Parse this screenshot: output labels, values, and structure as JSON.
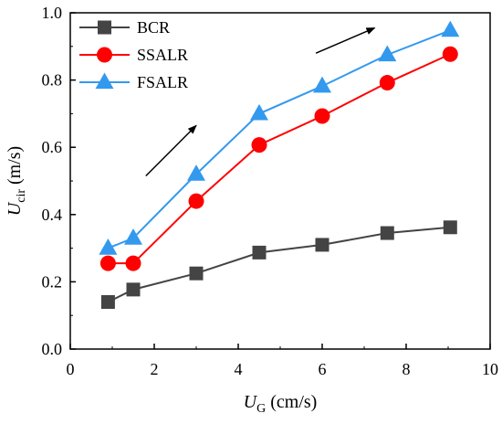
{
  "chart_data": {
    "type": "line",
    "xlabel": {
      "main": "U",
      "sub": "G",
      "unit": " (cm/s)"
    },
    "ylabel": {
      "main": "U",
      "sub": "cir",
      "unit": " (m/s)"
    },
    "xlim": [
      0,
      10
    ],
    "ylim": [
      0.0,
      1.0
    ],
    "xticks": [
      0,
      2,
      4,
      6,
      8,
      10
    ],
    "xtick_labels": [
      "0",
      "2",
      "4",
      "6",
      "8",
      "10"
    ],
    "yticks": [
      0.0,
      0.2,
      0.4,
      0.6,
      0.8,
      1.0
    ],
    "ytick_labels": [
      "0.0",
      "0.2",
      "0.4",
      "0.6",
      "0.8",
      "1.0"
    ],
    "grid": false,
    "legend_position": "top-left",
    "series": [
      {
        "name": "BCR",
        "marker": "square",
        "color": "#444444",
        "x": [
          0.9,
          1.5,
          3.0,
          4.5,
          6.0,
          7.55,
          9.05
        ],
        "values": [
          0.14,
          0.177,
          0.225,
          0.287,
          0.31,
          0.345,
          0.362
        ]
      },
      {
        "name": "SSALR",
        "marker": "circle",
        "color": "#ff0000",
        "x": [
          0.9,
          1.5,
          3.0,
          4.5,
          6.0,
          7.55,
          9.05
        ],
        "values": [
          0.255,
          0.255,
          0.44,
          0.607,
          0.693,
          0.792,
          0.877
        ]
      },
      {
        "name": "FSALR",
        "marker": "triangle",
        "color": "#3399ee",
        "x": [
          0.9,
          1.5,
          3.0,
          4.5,
          6.0,
          7.55,
          9.05
        ],
        "values": [
          0.3,
          0.33,
          0.52,
          0.7,
          0.782,
          0.875,
          0.948
        ]
      }
    ],
    "annotations": [
      {
        "type": "arrow",
        "from": [
          1.8,
          0.515
        ],
        "to": [
          3.0,
          0.665
        ]
      },
      {
        "type": "arrow",
        "from": [
          5.85,
          0.88
        ],
        "to": [
          7.25,
          0.955
        ]
      }
    ]
  }
}
